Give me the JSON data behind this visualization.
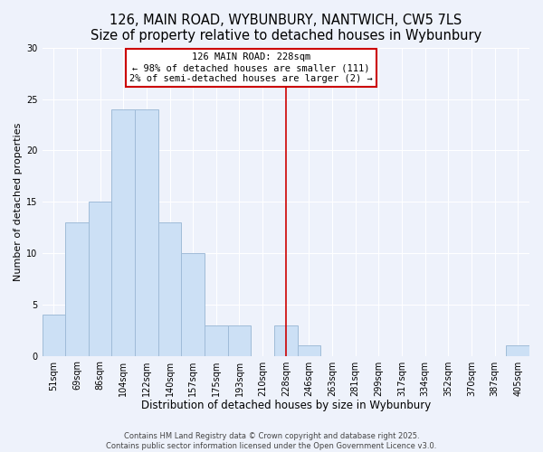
{
  "title": "126, MAIN ROAD, WYBUNBURY, NANTWICH, CW5 7LS",
  "subtitle": "Size of property relative to detached houses in Wybunbury",
  "xlabel": "Distribution of detached houses by size in Wybunbury",
  "ylabel": "Number of detached properties",
  "bar_labels": [
    "51sqm",
    "69sqm",
    "86sqm",
    "104sqm",
    "122sqm",
    "140sqm",
    "157sqm",
    "175sqm",
    "193sqm",
    "210sqm",
    "228sqm",
    "246sqm",
    "263sqm",
    "281sqm",
    "299sqm",
    "317sqm",
    "334sqm",
    "352sqm",
    "370sqm",
    "387sqm",
    "405sqm"
  ],
  "bar_values": [
    4,
    13,
    15,
    24,
    24,
    13,
    10,
    3,
    3,
    0,
    3,
    1,
    0,
    0,
    0,
    0,
    0,
    0,
    0,
    0,
    1
  ],
  "bar_color": "#cce0f5",
  "bar_edge_color": "#a0bcd8",
  "vline_x_idx": 10,
  "vline_color": "#cc0000",
  "annotation_title": "126 MAIN ROAD: 228sqm",
  "annotation_line1": "← 98% of detached houses are smaller (111)",
  "annotation_line2": "2% of semi-detached houses are larger (2) →",
  "annotation_box_color": "#ffffff",
  "annotation_box_edge": "#cc0000",
  "ylim": [
    0,
    30
  ],
  "yticks": [
    0,
    5,
    10,
    15,
    20,
    25,
    30
  ],
  "background_color": "#eef2fb",
  "grid_color": "#ffffff",
  "footer1": "Contains HM Land Registry data © Crown copyright and database right 2025.",
  "footer2": "Contains public sector information licensed under the Open Government Licence v3.0.",
  "title_fontsize": 10.5,
  "subtitle_fontsize": 9,
  "xlabel_fontsize": 8.5,
  "ylabel_fontsize": 8,
  "tick_fontsize": 7,
  "annotation_fontsize": 7.5,
  "footer_fontsize": 6
}
